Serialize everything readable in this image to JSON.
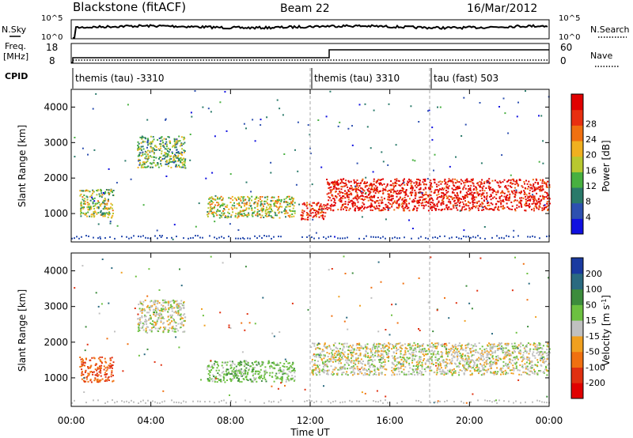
{
  "header": {
    "radar": "Blackstone (fitACF)",
    "beam": "Beam 22",
    "date": "16/Mar/2012"
  },
  "top_panels": {
    "nsky_label": "N.Sky",
    "nsky_ticks": [
      "10^5",
      "10^0"
    ],
    "nsearch_label": "N.Search",
    "nsearch_ticks": [
      "10^5",
      "10^0"
    ],
    "freq_label": "Freq.",
    "freq_unit": "[MHz]",
    "freq_ticks": [
      "18",
      "8"
    ],
    "nave_label": "Nave",
    "nave_ticks": [
      "60",
      "0"
    ],
    "cpid_label": "CPID"
  },
  "cpid_segments": [
    {
      "label": "themis (tau) -3310",
      "start_hour": 0
    },
    {
      "label": "themis (tau) 3310",
      "start_hour": 12
    },
    {
      "label": "tau (fast) 503",
      "start_hour": 18
    }
  ],
  "axes": {
    "ylabel": "Slant Range [km]",
    "xlabel": "Time UT",
    "y_ticks": [
      "1000",
      "2000",
      "3000",
      "4000"
    ],
    "x_ticks": [
      "00:00",
      "04:00",
      "08:00",
      "12:00",
      "16:00",
      "20:00",
      "00:00"
    ]
  },
  "power_colorbar": {
    "label": "Power [dB]",
    "ticks": [
      "4",
      "8",
      "12",
      "16",
      "20",
      "24",
      "28"
    ],
    "colors": [
      "#1010e0",
      "#2d50b0",
      "#2a7a6a",
      "#48b040",
      "#b8c830",
      "#f0b020",
      "#f07010",
      "#e83010",
      "#e00000"
    ]
  },
  "velocity_colorbar": {
    "label_main": "Velocity [m s",
    "label_sup": "-1",
    "label_end": "]",
    "ticks": [
      "200",
      "100",
      "50",
      "15",
      "-15",
      "-50",
      "-100",
      "-200"
    ],
    "colors": [
      "#1a3aa0",
      "#2a6a80",
      "#3c8c3c",
      "#6cc040",
      "#c0c0c0",
      "#f0a020",
      "#f07010",
      "#e03010",
      "#e00000"
    ]
  },
  "chart_data": [
    {
      "type": "heatmap",
      "title": "Power",
      "xlabel": "Time UT",
      "ylabel": "Slant Range [km]",
      "xlim": [
        0,
        24
      ],
      "ylim": [
        200,
        4500
      ],
      "value_units": "dB",
      "regions": [
        {
          "t0": 0.4,
          "t1": 2.1,
          "r0": 900,
          "r1": 1700,
          "power": 14
        },
        {
          "t0": 3.3,
          "t1": 5.7,
          "r0": 2300,
          "r1": 3200,
          "power": 12
        },
        {
          "t0": 6.8,
          "t1": 11.2,
          "r0": 900,
          "r1": 1500,
          "power": 16
        },
        {
          "t0": 11.5,
          "t1": 12.8,
          "r0": 850,
          "r1": 1350,
          "power": 26
        },
        {
          "t0": 12.8,
          "t1": 24,
          "r0": 1100,
          "r1": 2000,
          "power": 28
        }
      ]
    },
    {
      "type": "heatmap",
      "title": "Velocity",
      "xlabel": "Time UT",
      "ylabel": "Slant Range [km]",
      "xlim": [
        0,
        24
      ],
      "ylim": [
        200,
        4500
      ],
      "value_units": "m s-1",
      "regions": [
        {
          "t0": 0.4,
          "t1": 2.1,
          "r0": 900,
          "r1": 1600,
          "velocity": -100
        },
        {
          "t0": 3.3,
          "t1": 5.7,
          "r0": 2300,
          "r1": 3200,
          "velocity": 0
        },
        {
          "t0": 6.8,
          "t1": 11.2,
          "r0": 900,
          "r1": 1500,
          "velocity": 30
        },
        {
          "t0": 12,
          "t1": 24,
          "r0": 1100,
          "r1": 2000,
          "velocity": 0
        }
      ]
    }
  ]
}
